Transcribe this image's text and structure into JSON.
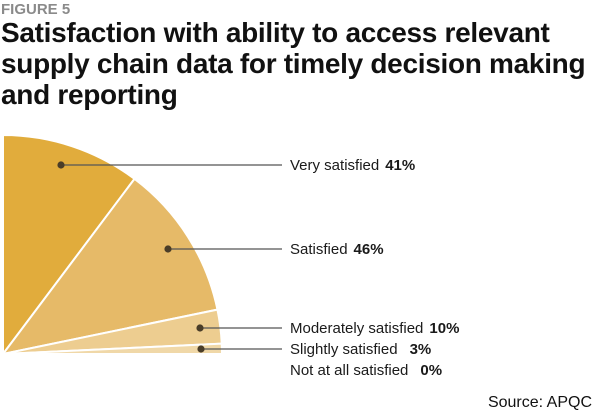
{
  "figure_label": "FIGURE 5",
  "chart_data": {
    "type": "pie",
    "variant": "quarter-pie",
    "title": "Satisfaction with ability to access relevant supply chain data for timely decision making and reporting",
    "unit": "%",
    "categories": [
      "Very satisfied",
      "Satisfied",
      "Moderately satisfied",
      "Slightly satisfied",
      "Not at all satisfied"
    ],
    "values": [
      41,
      46,
      10,
      3,
      0
    ],
    "value_labels": [
      "41%",
      "46%",
      "10%",
      "3%",
      "0%"
    ],
    "colors": [
      "#E1AC3C",
      "#E6BA68",
      "#EDCD90",
      "#F0D8A8",
      "#F4E4C4"
    ],
    "source": "Source: APQC",
    "legend": "right"
  }
}
